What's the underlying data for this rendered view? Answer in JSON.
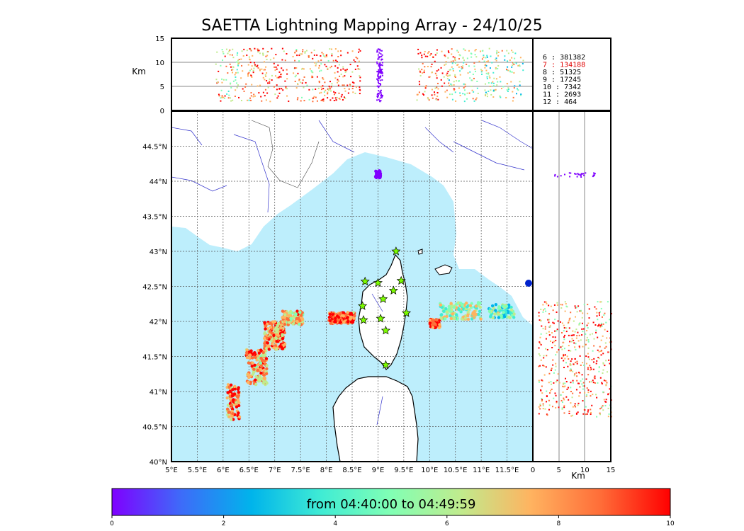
{
  "title": "SAETTA Lightning Mapping Array - 24/10/25",
  "height_panel": {
    "unit_label": "Km",
    "ticks": [
      "15",
      "10",
      "5",
      "0"
    ],
    "tick_values": [
      15,
      10,
      5,
      0
    ]
  },
  "map": {
    "lon_labels": [
      "5°E",
      "5.5°E",
      "6°E",
      "6.5°E",
      "7°E",
      "7.5°E",
      "8°E",
      "8.5°E",
      "9°E",
      "9.5°E",
      "10°E",
      "10.5°E",
      "11°E",
      "11.5°E"
    ],
    "lon_values": [
      5,
      5.5,
      6,
      6.5,
      7,
      7.5,
      8,
      8.5,
      9,
      9.5,
      10,
      10.5,
      11,
      11.5
    ],
    "lat_labels": [
      "40°N",
      "40.5°N",
      "41°N",
      "41.5°N",
      "42°N",
      "42.5°N",
      "43°N",
      "43.5°N",
      "44°N",
      "44.5°N"
    ],
    "lat_values": [
      40,
      40.5,
      41,
      41.5,
      42,
      42.5,
      43,
      43.5,
      44,
      44.5
    ],
    "lon_range": [
      5,
      12
    ],
    "lat_range": [
      40,
      45
    ],
    "sea_color": "#bdeefc",
    "land_color": "#ffffff",
    "station_marker": "star-icon",
    "station_color": "#7cfc00"
  },
  "side_panel": {
    "unit_label": "Km",
    "ticks": [
      "0",
      "5",
      "10",
      "15"
    ],
    "tick_values": [
      0,
      5,
      10,
      15
    ]
  },
  "counts": [
    {
      "label": "6 :   381382",
      "color": "#000000"
    },
    {
      "label": "7 :   134188",
      "color": "#e00000"
    },
    {
      "label": "8 :    51325",
      "color": "#000000"
    },
    {
      "label": "9 :    17245",
      "color": "#000000"
    },
    {
      "label": "10 :    7342",
      "color": "#000000"
    },
    {
      "label": "11 :    2693",
      "color": "#000000"
    },
    {
      "label": "12 :     464",
      "color": "#000000"
    }
  ],
  "colorbar": {
    "label": "from 04:40:00 to 04:49:59",
    "ticks": [
      "0",
      "2",
      "4",
      "6",
      "8",
      "10"
    ],
    "tick_values": [
      0,
      2,
      4,
      6,
      8,
      10
    ],
    "range": [
      0,
      10
    ],
    "colors": [
      "#7f00ff",
      "#3d6cf9",
      "#00b4eb",
      "#40ecd4",
      "#81ffb4",
      "#c0eb8d",
      "#ffb360",
      "#ff6d38",
      "#ff0000"
    ]
  }
}
